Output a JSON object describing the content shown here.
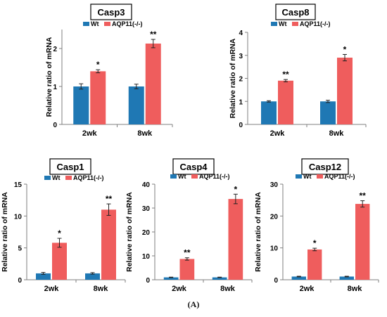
{
  "figure": {
    "caption": "(A)"
  },
  "legend_icons": {
    "wt_swatch": "legend-swatch-wt",
    "ko_swatch": "legend-swatch-aqp11"
  },
  "colors": {
    "wt": "#1f78b4",
    "ko": "#ef5d5d",
    "axis": "#7f7f7f",
    "error": "#222222"
  },
  "chart_data": [
    {
      "type": "bar",
      "title": "Casp3",
      "ylabel": "Relative ratio of  mRNA",
      "categories": [
        "2wk",
        "8wk"
      ],
      "ylim": [
        0,
        2.5
      ],
      "yticks": [
        "0",
        "1",
        "2"
      ],
      "series": [
        {
          "name": "Wt",
          "values": [
            1.0,
            1.0
          ],
          "errors": [
            0.07,
            0.06
          ]
        },
        {
          "name": "AQP11(-/-)",
          "values": [
            1.4,
            2.13
          ],
          "errors": [
            0.04,
            0.11
          ]
        }
      ],
      "annotations": [
        "*",
        "**"
      ]
    },
    {
      "type": "bar",
      "title": "Casp8",
      "ylabel": "Relative ratio of  mRNA",
      "categories": [
        "2wk",
        "8wk"
      ],
      "ylim": [
        0,
        4
      ],
      "yticks": [
        "0",
        "1",
        "2",
        "3",
        "4"
      ],
      "series": [
        {
          "name": "Wt",
          "values": [
            1.0,
            1.0
          ],
          "errors": [
            0.03,
            0.05
          ]
        },
        {
          "name": "AQP11(-/-)",
          "values": [
            1.9,
            2.9
          ],
          "errors": [
            0.05,
            0.14
          ]
        }
      ],
      "annotations": [
        "**",
        "*"
      ]
    },
    {
      "type": "bar",
      "title": "Casp1",
      "ylabel": "Relative ratio of  mRNA",
      "categories": [
        "2wk",
        "8wk"
      ],
      "ylim": [
        0,
        15
      ],
      "yticks": [
        "0",
        "5",
        "10",
        "15"
      ],
      "series": [
        {
          "name": "Wt",
          "values": [
            1.0,
            1.0
          ],
          "errors": [
            0.15,
            0.12
          ]
        },
        {
          "name": "AQP11(-/-)",
          "values": [
            5.8,
            11.0
          ],
          "errors": [
            0.7,
            0.9
          ]
        }
      ],
      "annotations": [
        "*",
        "**"
      ]
    },
    {
      "type": "bar",
      "title": "Casp4",
      "ylabel": "Relative ratio of  mRNA",
      "categories": [
        "2wk",
        "8wk"
      ],
      "ylim": [
        0,
        40
      ],
      "yticks": [
        "0",
        "10",
        "20",
        "30",
        "40"
      ],
      "series": [
        {
          "name": "Wt",
          "values": [
            1.0,
            1.0
          ],
          "errors": [
            0.1,
            0.1
          ]
        },
        {
          "name": "AQP11(-/-)",
          "values": [
            8.7,
            33.8
          ],
          "errors": [
            0.5,
            2.0
          ]
        }
      ],
      "annotations": [
        "**",
        "*"
      ]
    },
    {
      "type": "bar",
      "title": "Casp12",
      "ylabel": "Relative ratio of  mRNA",
      "categories": [
        "2wk",
        "8wk"
      ],
      "ylim": [
        0,
        30
      ],
      "yticks": [
        "0",
        "10",
        "20",
        "30"
      ],
      "series": [
        {
          "name": "Wt",
          "values": [
            1.0,
            1.0
          ],
          "errors": [
            0.1,
            0.1
          ]
        },
        {
          "name": "AQP11(-/-)",
          "values": [
            9.5,
            23.8
          ],
          "errors": [
            0.4,
            1.0
          ]
        }
      ],
      "annotations": [
        "*",
        "**"
      ]
    }
  ]
}
